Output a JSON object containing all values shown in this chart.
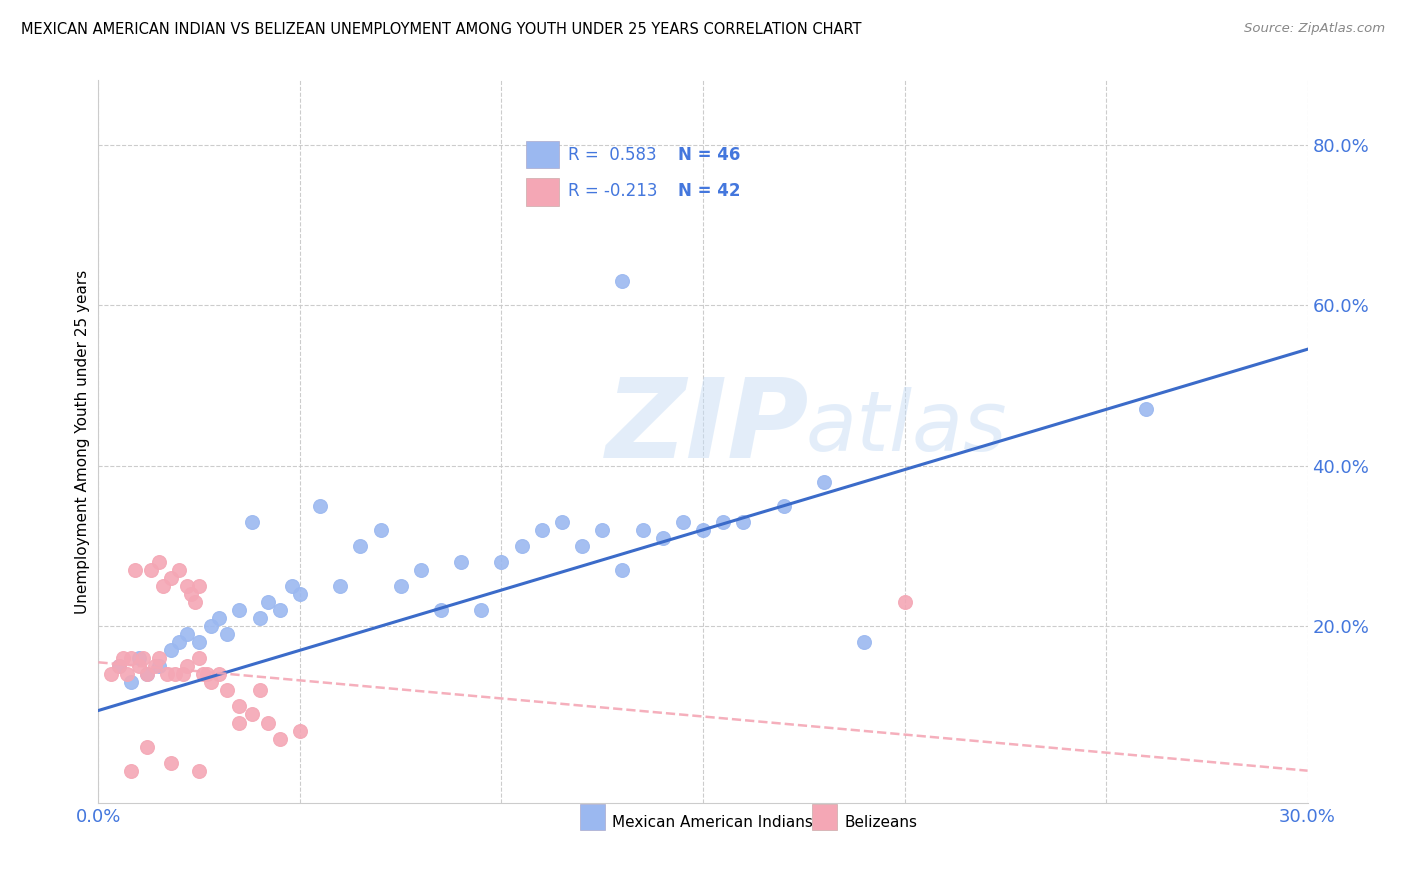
{
  "title": "MEXICAN AMERICAN INDIAN VS BELIZEAN UNEMPLOYMENT AMONG YOUTH UNDER 25 YEARS CORRELATION CHART",
  "source": "Source: ZipAtlas.com",
  "ylabel": "Unemployment Among Youth under 25 years",
  "xlim": [
    0.0,
    0.3
  ],
  "ylim": [
    -0.02,
    0.88
  ],
  "xticks": [
    0.0,
    0.05,
    0.1,
    0.15,
    0.2,
    0.25,
    0.3
  ],
  "xtick_labels": [
    "0.0%",
    "",
    "",
    "",
    "",
    "",
    "30.0%"
  ],
  "yticks_right": [
    0.2,
    0.4,
    0.6,
    0.8
  ],
  "ytick_labels_right": [
    "20.0%",
    "40.0%",
    "60.0%",
    "80.0%"
  ],
  "blue_color": "#9bb8f0",
  "pink_color": "#f4a7b5",
  "trend_blue_color": "#3b6bc9",
  "trend_pink_color": "#f4a7b5",
  "watermark": "ZIPatlas",
  "legend_blue_R": "R =  0.583",
  "legend_blue_N": "N = 46",
  "legend_pink_R": "R = -0.213",
  "legend_pink_N": "N = 42",
  "blue_intercept": 0.095,
  "blue_slope": 1.5,
  "pink_intercept": 0.155,
  "pink_slope": -0.45,
  "blue_scatter_x": [
    0.005,
    0.008,
    0.01,
    0.012,
    0.015,
    0.018,
    0.02,
    0.022,
    0.025,
    0.028,
    0.03,
    0.032,
    0.035,
    0.038,
    0.04,
    0.042,
    0.045,
    0.048,
    0.05,
    0.055,
    0.06,
    0.065,
    0.07,
    0.075,
    0.08,
    0.085,
    0.09,
    0.095,
    0.1,
    0.105,
    0.11,
    0.115,
    0.12,
    0.125,
    0.13,
    0.135,
    0.14,
    0.145,
    0.15,
    0.155,
    0.16,
    0.17,
    0.18,
    0.19,
    0.26,
    0.13
  ],
  "blue_scatter_y": [
    0.15,
    0.13,
    0.16,
    0.14,
    0.15,
    0.17,
    0.18,
    0.19,
    0.18,
    0.2,
    0.21,
    0.19,
    0.22,
    0.33,
    0.21,
    0.23,
    0.22,
    0.25,
    0.24,
    0.35,
    0.25,
    0.3,
    0.32,
    0.25,
    0.27,
    0.22,
    0.28,
    0.22,
    0.28,
    0.3,
    0.32,
    0.33,
    0.3,
    0.32,
    0.27,
    0.32,
    0.31,
    0.33,
    0.32,
    0.33,
    0.33,
    0.35,
    0.38,
    0.18,
    0.47,
    0.63
  ],
  "pink_scatter_x": [
    0.003,
    0.005,
    0.006,
    0.007,
    0.008,
    0.009,
    0.01,
    0.011,
    0.012,
    0.013,
    0.014,
    0.015,
    0.015,
    0.016,
    0.017,
    0.018,
    0.019,
    0.02,
    0.021,
    0.022,
    0.022,
    0.023,
    0.024,
    0.025,
    0.025,
    0.026,
    0.027,
    0.028,
    0.03,
    0.032,
    0.035,
    0.038,
    0.04,
    0.042,
    0.045,
    0.05,
    0.008,
    0.012,
    0.018,
    0.025,
    0.035,
    0.2
  ],
  "pink_scatter_y": [
    0.14,
    0.15,
    0.16,
    0.14,
    0.16,
    0.27,
    0.15,
    0.16,
    0.14,
    0.27,
    0.15,
    0.28,
    0.16,
    0.25,
    0.14,
    0.26,
    0.14,
    0.27,
    0.14,
    0.25,
    0.15,
    0.24,
    0.23,
    0.16,
    0.25,
    0.14,
    0.14,
    0.13,
    0.14,
    0.12,
    0.1,
    0.09,
    0.12,
    0.08,
    0.06,
    0.07,
    0.02,
    0.05,
    0.03,
    0.02,
    0.08,
    0.23
  ]
}
